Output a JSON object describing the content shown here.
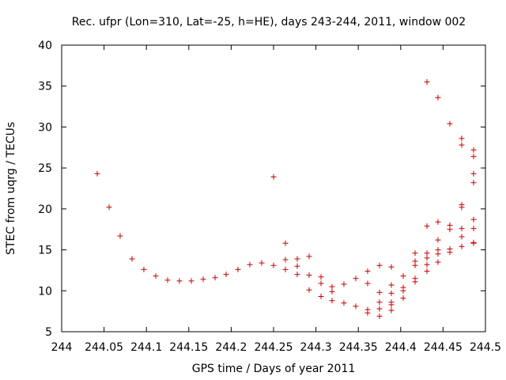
{
  "chart_data": {
    "type": "scatter",
    "title": "Rec. ufpr (Lon=310, Lat=-25, h=HE), days 243-244, 2011, window 002",
    "xlabel": "GPS time / Days of year 2011",
    "ylabel": "STEC from uqrg / TECUs",
    "xlim": [
      244,
      244.5
    ],
    "ylim": [
      5,
      40
    ],
    "x_ticks": [
      "244",
      "244.05",
      "244.1",
      "244.15",
      "244.2",
      "244.25",
      "244.3",
      "244.35",
      "244.4",
      "244.45",
      "244.5"
    ],
    "y_ticks": [
      "5",
      "10",
      "15",
      "20",
      "25",
      "30",
      "35",
      "40"
    ],
    "marker": "+",
    "marker_color": "#cc0000",
    "grid": false,
    "points": [
      [
        244.042,
        24.3
      ],
      [
        244.056,
        20.2
      ],
      [
        244.069,
        16.7
      ],
      [
        244.083,
        13.9
      ],
      [
        244.097,
        12.6
      ],
      [
        244.111,
        11.8
      ],
      [
        244.125,
        11.3
      ],
      [
        244.139,
        11.2
      ],
      [
        244.153,
        11.2
      ],
      [
        244.167,
        11.4
      ],
      [
        244.181,
        11.6
      ],
      [
        244.194,
        12.0
      ],
      [
        244.208,
        12.6
      ],
      [
        244.222,
        13.2
      ],
      [
        244.236,
        13.4
      ],
      [
        244.25,
        13.1
      ],
      [
        244.25,
        23.9
      ],
      [
        244.264,
        15.8
      ],
      [
        244.264,
        13.8
      ],
      [
        244.264,
        12.6
      ],
      [
        244.278,
        13.9
      ],
      [
        244.278,
        13.0
      ],
      [
        244.278,
        12.0
      ],
      [
        244.292,
        14.2
      ],
      [
        244.292,
        11.9
      ],
      [
        244.292,
        10.1
      ],
      [
        244.306,
        11.7
      ],
      [
        244.306,
        10.9
      ],
      [
        244.306,
        9.3
      ],
      [
        244.319,
        10.5
      ],
      [
        244.319,
        9.9
      ],
      [
        244.319,
        8.8
      ],
      [
        244.333,
        10.8
      ],
      [
        244.333,
        8.5
      ],
      [
        244.347,
        11.5
      ],
      [
        244.347,
        8.1
      ],
      [
        244.361,
        12.4
      ],
      [
        244.361,
        10.9
      ],
      [
        244.361,
        7.7
      ],
      [
        244.361,
        7.3
      ],
      [
        244.375,
        13.1
      ],
      [
        244.375,
        9.8
      ],
      [
        244.375,
        8.6
      ],
      [
        244.375,
        7.8
      ],
      [
        244.375,
        6.9
      ],
      [
        244.389,
        12.9
      ],
      [
        244.389,
        10.7
      ],
      [
        244.389,
        9.7
      ],
      [
        244.389,
        8.6
      ],
      [
        244.389,
        8.3
      ],
      [
        244.389,
        7.6
      ],
      [
        244.403,
        11.8
      ],
      [
        244.403,
        10.4
      ],
      [
        244.403,
        10.0
      ],
      [
        244.403,
        9.1
      ],
      [
        244.417,
        14.6
      ],
      [
        244.417,
        13.6
      ],
      [
        244.417,
        13.1
      ],
      [
        244.417,
        11.5
      ],
      [
        244.417,
        11.1
      ],
      [
        244.431,
        35.5
      ],
      [
        244.431,
        17.9
      ],
      [
        244.431,
        14.6
      ],
      [
        244.431,
        14.0
      ],
      [
        244.431,
        13.2
      ],
      [
        244.431,
        12.4
      ],
      [
        244.444,
        33.6
      ],
      [
        244.444,
        18.4
      ],
      [
        244.444,
        16.2
      ],
      [
        244.444,
        15.0
      ],
      [
        244.444,
        14.5
      ],
      [
        244.444,
        13.5
      ],
      [
        244.458,
        30.4
      ],
      [
        244.458,
        18.0
      ],
      [
        244.458,
        17.5
      ],
      [
        244.458,
        15.1
      ],
      [
        244.458,
        14.7
      ],
      [
        244.472,
        28.6
      ],
      [
        244.472,
        27.8
      ],
      [
        244.472,
        20.5
      ],
      [
        244.472,
        20.2
      ],
      [
        244.472,
        17.6
      ],
      [
        244.472,
        16.6
      ],
      [
        244.472,
        15.4
      ],
      [
        244.486,
        27.2
      ],
      [
        244.486,
        26.4
      ],
      [
        244.486,
        24.3
      ],
      [
        244.486,
        23.2
      ],
      [
        244.486,
        18.7
      ],
      [
        244.486,
        17.6
      ],
      [
        244.486,
        15.9
      ],
      [
        244.486,
        15.8
      ]
    ]
  }
}
